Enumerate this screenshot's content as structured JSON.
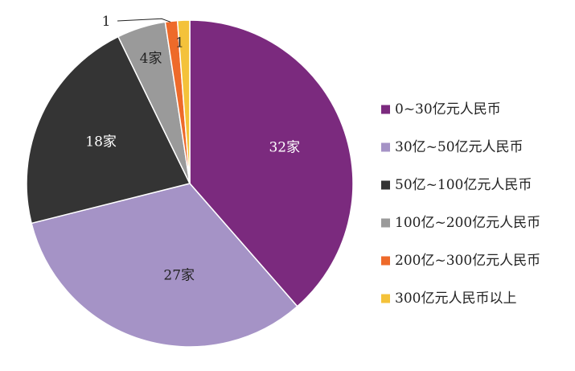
{
  "chart_data": {
    "type": "pie",
    "title": "",
    "legend_position": "right",
    "start_angle": "12 o'clock, clockwise",
    "slices": [
      {
        "name": "0~30亿元人民币",
        "value": 32,
        "label": "32家",
        "color": "#7b2a7e",
        "label_color": "#ffffff"
      },
      {
        "name": "30亿~50亿元人民币",
        "value": 27,
        "label": "27家",
        "color": "#a593c6",
        "label_color": "#222222"
      },
      {
        "name": "50亿~100亿元人民币",
        "value": 18,
        "label": "18家",
        "color": "#343434",
        "label_color": "#ffffff"
      },
      {
        "name": "100亿~200亿元人民币",
        "value": 4,
        "label": "4家",
        "color": "#9a9a9a",
        "label_color": "#222222"
      },
      {
        "name": "200亿~300亿元人民币",
        "value": 1,
        "label": "1",
        "color": "#ee6a2a",
        "label_color": "#222222"
      },
      {
        "name": "300亿元人民币以上",
        "value": 1,
        "label": "1",
        "color": "#f4c23a",
        "label_color": "#222222"
      }
    ]
  }
}
